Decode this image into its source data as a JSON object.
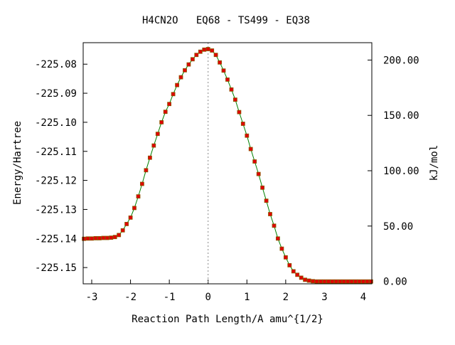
{
  "chart_data": {
    "type": "line",
    "title": "H4CN2O   EQ68 - TS499 - EQ38",
    "xlabel": "Reaction Path Length/A amu^{1/2}",
    "ylabel": "Energy/Hartree",
    "y2label": "kJ/mol",
    "xlim": [
      -3.22,
      4.22
    ],
    "ylim": [
      -225.1556,
      -225.0726
    ],
    "y2lim": [
      -2.2,
      215.7
    ],
    "xticks": [
      -3,
      -2,
      -1,
      0,
      1,
      2,
      3,
      4
    ],
    "xtick_labels": [
      "-3",
      "-2",
      "-1",
      "0",
      "1",
      "2",
      "3",
      "4"
    ],
    "yticks": [
      -225.08,
      -225.09,
      -225.1,
      -225.11,
      -225.12,
      -225.13,
      -225.14,
      -225.15
    ],
    "ytick_labels": [
      "-225.08",
      "-225.09",
      "-225.10",
      "-225.11",
      "-225.12",
      "-225.13",
      "-225.14",
      "-225.15"
    ],
    "y2ticks": [
      0,
      50,
      100,
      150,
      200
    ],
    "y2tick_labels": [
      "0.00",
      "50.00",
      "100.00",
      "150.00",
      "200.00"
    ],
    "ts_x": 0,
    "colors": {
      "line": "#008000",
      "marker": "#e00000",
      "marker_edge": "#8a5a00",
      "ts_line": "#888888"
    },
    "series": [
      {
        "x": [
          -3.2,
          -3.1,
          -3.0,
          -2.9,
          -2.8,
          -2.7,
          -2.6,
          -2.5,
          -2.4,
          -2.3,
          -2.2,
          -2.1,
          -2.0,
          -1.9,
          -1.8,
          -1.7,
          -1.6,
          -1.5,
          -1.4,
          -1.3,
          -1.2,
          -1.1,
          -1.0,
          -0.9,
          -0.8,
          -0.7,
          -0.6,
          -0.5,
          -0.4,
          -0.3,
          -0.2,
          -0.1,
          0.0,
          0.1,
          0.2,
          0.3,
          0.4,
          0.5,
          0.6,
          0.7,
          0.8,
          0.9,
          1.0,
          1.1,
          1.2,
          1.3,
          1.4,
          1.5,
          1.6,
          1.7,
          1.8,
          1.9,
          2.0,
          2.1,
          2.2,
          2.3,
          2.4,
          2.5,
          2.6,
          2.7,
          2.8,
          2.9,
          3.0,
          3.1,
          3.2,
          3.3,
          3.4,
          3.5,
          3.6,
          3.7,
          3.8,
          3.9,
          4.0,
          4.1,
          4.2
        ],
        "y": [
          -225.1401,
          -225.14,
          -225.14,
          -225.1399,
          -225.1399,
          -225.1398,
          -225.1398,
          -225.1397,
          -225.1395,
          -225.1388,
          -225.1372,
          -225.135,
          -225.1328,
          -225.1295,
          -225.1255,
          -225.1212,
          -225.1165,
          -225.1122,
          -225.108,
          -225.104,
          -225.1,
          -225.0964,
          -225.0937,
          -225.0903,
          -225.0872,
          -225.0845,
          -225.0821,
          -225.0801,
          -225.0783,
          -225.0768,
          -225.0757,
          -225.075,
          -225.0748,
          -225.0753,
          -225.0768,
          -225.0794,
          -225.0822,
          -225.0853,
          -225.0887,
          -225.0922,
          -225.0965,
          -225.1005,
          -225.1046,
          -225.1092,
          -225.1135,
          -225.1178,
          -225.1225,
          -225.127,
          -225.1316,
          -225.1356,
          -225.14,
          -225.1435,
          -225.1465,
          -225.1492,
          -225.1513,
          -225.1525,
          -225.1535,
          -225.1542,
          -225.1545,
          -225.1547,
          -225.1548,
          -225.1548,
          -225.1548,
          -225.1548,
          -225.1548,
          -225.1548,
          -225.1548,
          -225.1548,
          -225.1548,
          -225.1548,
          -225.1548,
          -225.1548,
          -225.1548,
          -225.1548,
          -225.1548
        ]
      }
    ]
  }
}
